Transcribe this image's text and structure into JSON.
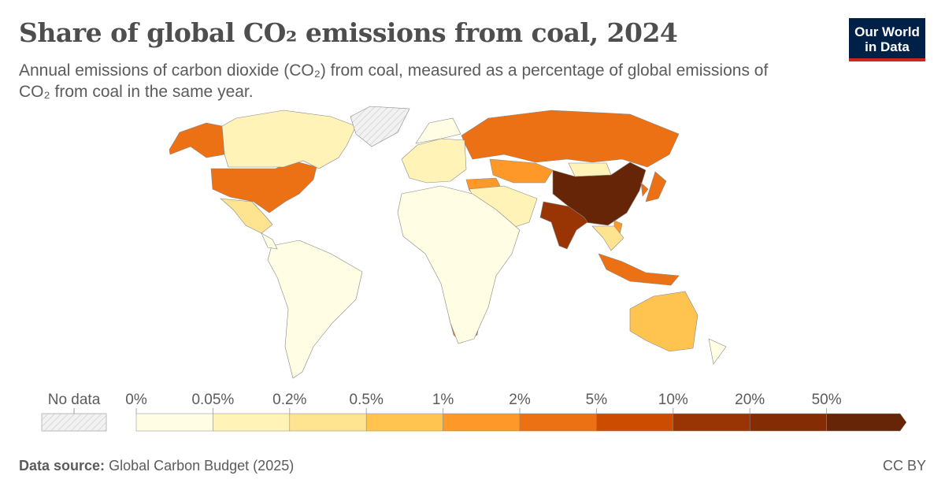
{
  "header": {
    "title": "Share of global CO₂ emissions from coal, 2024",
    "subtitle": "Annual emissions of carbon dioxide (CO₂) from coal, measured as a percentage of global emissions of CO₂ from coal in the same year.",
    "logo_text": "Our World in Data"
  },
  "legend": {
    "no_data_label": "No data",
    "bins": [
      "0%",
      "0.05%",
      "0.2%",
      "0.5%",
      "1%",
      "2%",
      "5%",
      "10%",
      "20%",
      "50%"
    ],
    "colors": [
      "#fffde3",
      "#fff3b8",
      "#fee391",
      "#fec44f",
      "#fe9929",
      "#ec7014",
      "#cc4c02",
      "#993404",
      "#842d04",
      "#662506"
    ]
  },
  "map_data": {
    "type": "choropleth",
    "year": 2024,
    "no_data_color": "#e8e8e8",
    "regions": [
      {
        "name": "China",
        "bin": 9
      },
      {
        "name": "India",
        "bin": 7
      },
      {
        "name": "United States",
        "bin": 5
      },
      {
        "name": "Alaska (United States)",
        "bin": 5
      },
      {
        "name": "Russia",
        "bin": 5
      },
      {
        "name": "Japan",
        "bin": 5
      },
      {
        "name": "Indonesia",
        "bin": 5
      },
      {
        "name": "South Africa",
        "bin": 5
      },
      {
        "name": "South Korea",
        "bin": 5
      },
      {
        "name": "Kazakhstan",
        "bin": 4
      },
      {
        "name": "Turkey",
        "bin": 4
      },
      {
        "name": "Germany",
        "bin": 4
      },
      {
        "name": "Poland",
        "bin": 4
      },
      {
        "name": "Vietnam",
        "bin": 4
      },
      {
        "name": "Australia",
        "bin": 3
      },
      {
        "name": "Brazil",
        "bin": 2
      },
      {
        "name": "Mexico",
        "bin": 2
      },
      {
        "name": "Southeast Asia",
        "bin": 2
      },
      {
        "name": "Canada",
        "bin": 1
      },
      {
        "name": "Europe",
        "bin": 1
      },
      {
        "name": "Mongolia",
        "bin": 1
      },
      {
        "name": "Middle East",
        "bin": 1
      },
      {
        "name": "Scandinavia",
        "bin": 0
      },
      {
        "name": "Africa",
        "bin": 0
      },
      {
        "name": "South America",
        "bin": 0
      },
      {
        "name": "Central America",
        "bin": 0
      },
      {
        "name": "New Zealand",
        "bin": 0
      },
      {
        "name": "Greenland",
        "bin": -1
      }
    ]
  },
  "footer": {
    "source_label": "Data source:",
    "source_value": "Global Carbon Budget (2025)",
    "license": "CC BY"
  }
}
